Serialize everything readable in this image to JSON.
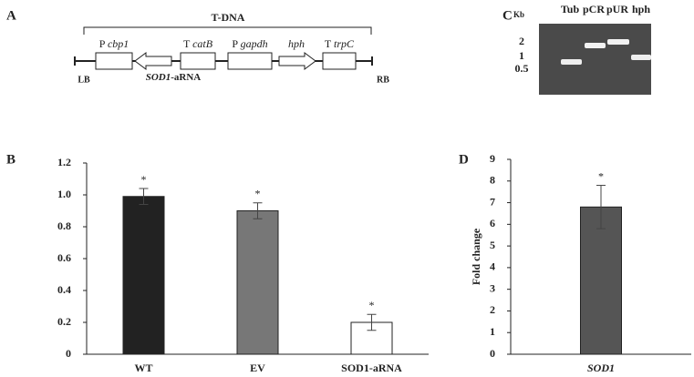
{
  "panels": {
    "a": "A",
    "b": "B",
    "c": "C",
    "d": "D"
  },
  "construct": {
    "title": "T-DNA",
    "elements": [
      {
        "prefix": "P",
        "name": "cbp1"
      },
      {
        "prefix": "T",
        "name": "catB"
      },
      {
        "prefix": "P",
        "name": "gapdh"
      },
      {
        "prefix": "",
        "name": "hph"
      },
      {
        "prefix": "T",
        "name": "trpC"
      }
    ],
    "antisense": {
      "name": "SOD1",
      "suffix": "-aRNA"
    },
    "left_border": "LB",
    "right_border": "RB"
  },
  "gel": {
    "unit": "Kb",
    "lanes": [
      "Tub",
      "pCR",
      "pUR",
      "hph"
    ],
    "markers": [
      "2",
      "1",
      "0.5"
    ]
  },
  "chart_data": [
    {
      "type": "bar",
      "categories": [
        "WT",
        "EV",
        "SOD1-aRNA"
      ],
      "values": [
        0.99,
        0.9,
        0.2
      ],
      "errors": [
        0.05,
        0.05,
        0.05
      ],
      "colors": [
        "#222222",
        "#777777",
        "#ffffff"
      ],
      "annotations": [
        "*",
        "*",
        "*"
      ],
      "ylim": [
        0,
        1.2
      ],
      "yticks": [
        0,
        0.2,
        0.4,
        0.6,
        0.8,
        {
          "value": 1,
          "label": "1.0"
        },
        1.2
      ]
    },
    {
      "type": "bar",
      "categories": [
        "SOD1"
      ],
      "values": [
        6.8
      ],
      "errors": [
        1.0
      ],
      "colors": [
        "#555555"
      ],
      "annotations": [
        "*"
      ],
      "ylabel": "Fold change",
      "ylim": [
        0,
        9
      ],
      "yticks": [
        0,
        1,
        2,
        3,
        4,
        5,
        6,
        7,
        8,
        9
      ]
    }
  ]
}
